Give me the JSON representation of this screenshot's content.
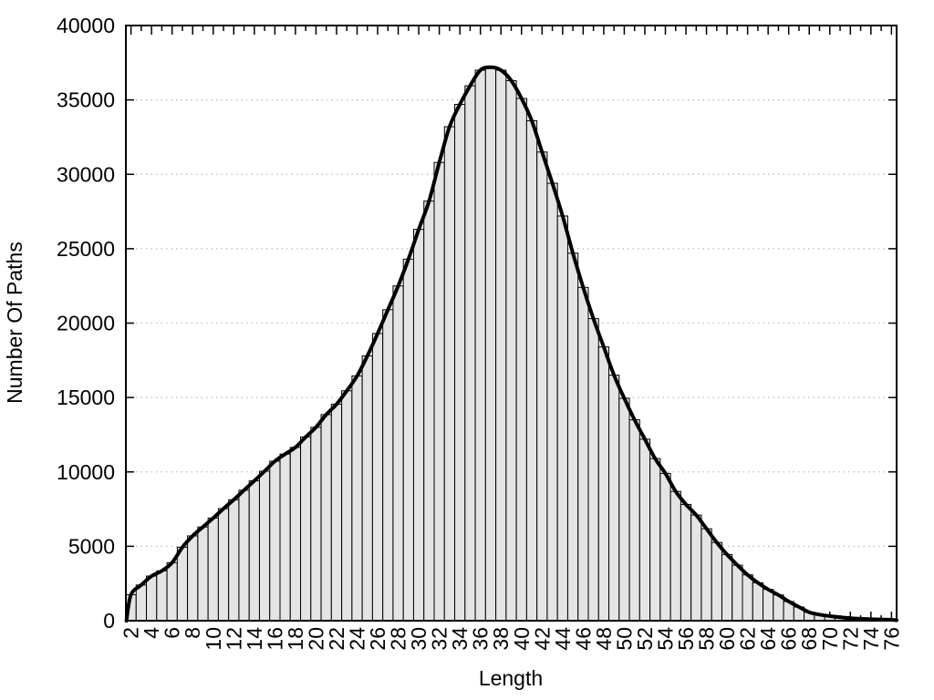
{
  "chart_data": {
    "type": "bar",
    "title": "",
    "xlabel": "Length",
    "ylabel": "Number Of Paths",
    "xlim": [
      1.5,
      76.5
    ],
    "ylim": [
      0,
      40000
    ],
    "x_tick_labels": [
      2,
      4,
      6,
      8,
      10,
      12,
      14,
      16,
      18,
      20,
      22,
      24,
      26,
      28,
      30,
      32,
      34,
      36,
      38,
      40,
      42,
      44,
      46,
      48,
      50,
      52,
      54,
      56,
      58,
      60,
      62,
      64,
      66,
      68,
      70,
      72,
      74,
      76
    ],
    "y_tick_labels": [
      0,
      5000,
      10000,
      15000,
      20000,
      25000,
      30000,
      35000,
      40000
    ],
    "x_tick_label_rotation": -90,
    "grid": "horizontal-dotted",
    "legend": "none",
    "categories": [
      2,
      3,
      4,
      5,
      6,
      7,
      8,
      9,
      10,
      11,
      12,
      13,
      14,
      15,
      16,
      17,
      18,
      19,
      20,
      21,
      22,
      23,
      24,
      25,
      26,
      27,
      28,
      29,
      30,
      31,
      32,
      33,
      34,
      35,
      36,
      37,
      38,
      39,
      40,
      41,
      42,
      43,
      44,
      45,
      46,
      47,
      48,
      49,
      50,
      51,
      52,
      53,
      54,
      55,
      56,
      57,
      58,
      59,
      60,
      61,
      62,
      63,
      64,
      65,
      66,
      67,
      68,
      69,
      70,
      71,
      72,
      73,
      74,
      75,
      76
    ],
    "values": [
      1750,
      2400,
      3000,
      3350,
      3900,
      4940,
      5700,
      6300,
      6900,
      7530,
      8130,
      8770,
      9400,
      10050,
      10720,
      11200,
      11650,
      12350,
      13000,
      13850,
      14550,
      15450,
      16450,
      17800,
      19300,
      20900,
      22500,
      24300,
      26300,
      28200,
      30800,
      33200,
      34700,
      35950,
      37000,
      37200,
      37000,
      36300,
      35100,
      33600,
      31500,
      29400,
      27200,
      24700,
      22400,
      20300,
      18400,
      16500,
      14950,
      13500,
      12200,
      10900,
      9900,
      8690,
      7815,
      7100,
      6180,
      5260,
      4450,
      3730,
      3080,
      2550,
      2100,
      1730,
      1290,
      920,
      570,
      410,
      310,
      230,
      170,
      130,
      100,
      80,
      60
    ],
    "overlay_curve": "smooth curve through bar tops",
    "curve_start": {
      "x": 1.55,
      "v": 0
    },
    "curve_end": {
      "x": 76.5,
      "v": 30
    },
    "bar_fill_color": "#e4e4e4",
    "bar_stroke_color": "#000000",
    "curve_color": "#000000",
    "grid_color": "#b9b9b9",
    "border_color": "#000000"
  }
}
